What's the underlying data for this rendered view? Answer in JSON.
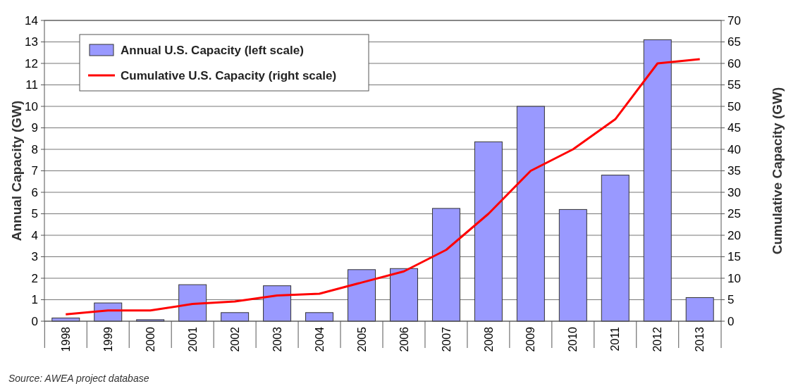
{
  "chart_data": {
    "type": "bar",
    "categories": [
      "1998",
      "1999",
      "2000",
      "2001",
      "2002",
      "2003",
      "2004",
      "2005",
      "2006",
      "2007",
      "2008",
      "2009",
      "2010",
      "2011",
      "2012",
      "2013"
    ],
    "series": [
      {
        "name": "Annual U.S. Capacity (left scale)",
        "color": "#9999ff",
        "values": [
          0.15,
          0.85,
          0.07,
          1.7,
          0.4,
          1.65,
          0.4,
          2.4,
          2.45,
          5.25,
          8.35,
          10.0,
          5.2,
          6.8,
          13.1,
          1.1
        ]
      },
      {
        "name": "Cumulative U.S. Capacity (right scale)",
        "type": "line",
        "axis": "y2",
        "color": "#ff0000",
        "values": [
          1.6,
          2.5,
          2.5,
          4,
          4.6,
          6,
          6.4,
          9,
          11.6,
          16.6,
          25,
          35,
          40,
          47,
          60,
          61
        ]
      }
    ],
    "ylabel": "Annual Capacity (GW)",
    "y2label": "Cumulative Capacity (GW)",
    "ylim": [
      0,
      14
    ],
    "yticks": [
      0,
      1,
      2,
      3,
      4,
      5,
      6,
      7,
      8,
      9,
      10,
      11,
      12,
      13,
      14
    ],
    "y2lim": [
      0,
      70
    ],
    "y2ticks": [
      0,
      5,
      10,
      15,
      20,
      25,
      30,
      35,
      40,
      45,
      50,
      55,
      60,
      65,
      70
    ],
    "grid": "y",
    "legend": "top left",
    "marker": "none",
    "annotations": [
      "Source: AWEA project database"
    ]
  }
}
